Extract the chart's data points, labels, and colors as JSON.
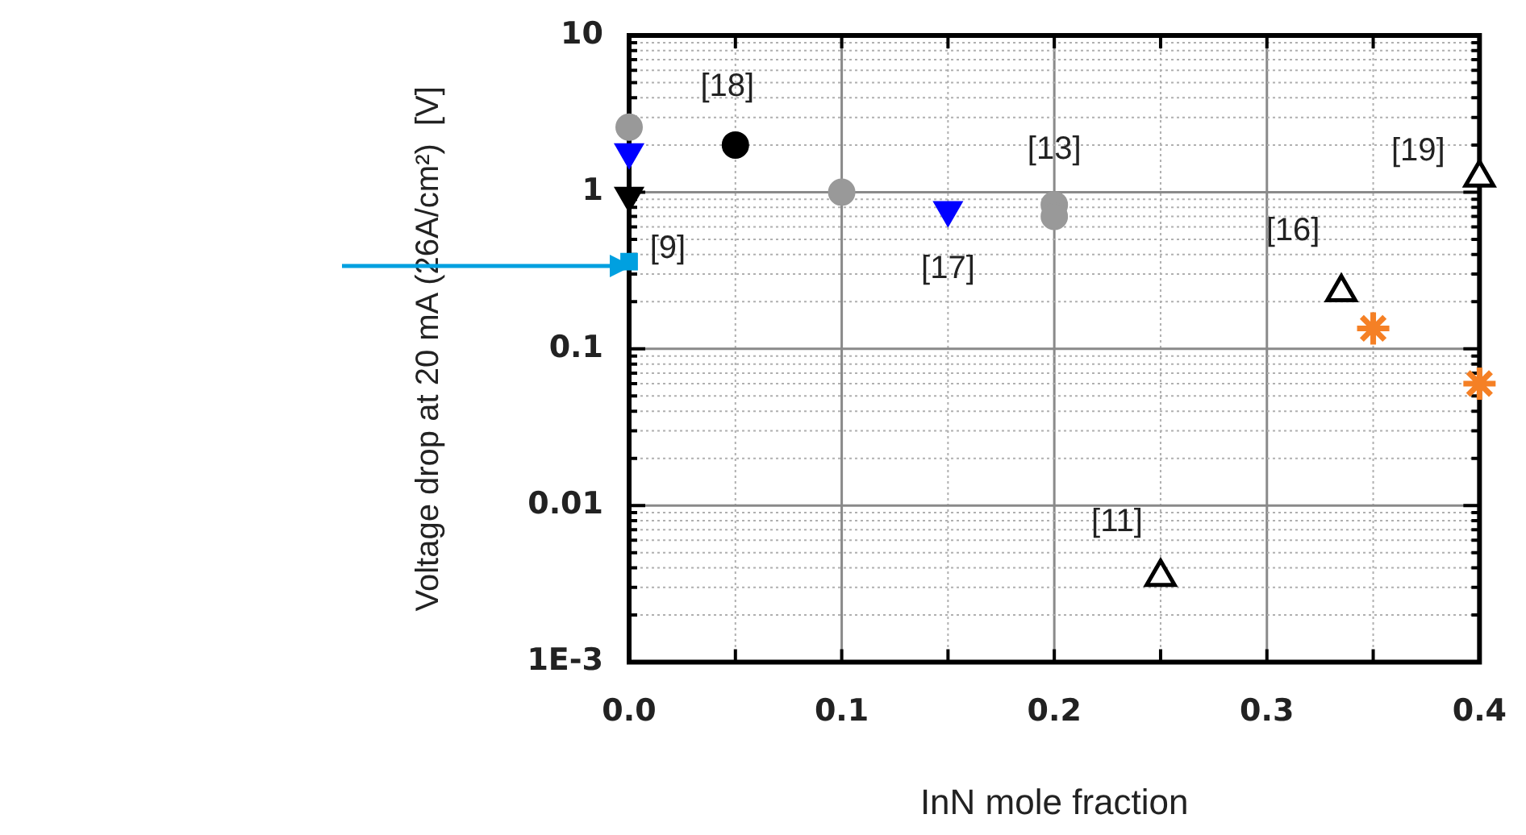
{
  "chart_data": {
    "type": "scatter",
    "xlabel": "InN mole fraction",
    "ylabel": "Voltage drop at 20 mA (26A/cm²)  [V]",
    "xlim": [
      0,
      0.4
    ],
    "xticks": [
      {
        "value": 0,
        "label": "0.0"
      },
      {
        "value": 0.05,
        "label": null
      },
      0.1,
      {
        "value": 0.15,
        "label": null
      },
      0.2,
      {
        "value": 0.25,
        "label": null
      },
      0.3,
      {
        "value": 0.35,
        "label": null
      },
      0.4
    ],
    "ylim": [
      0.001,
      10
    ],
    "log": "y",
    "yticks": [
      {
        "value": 0.001,
        "label": "1E-3"
      },
      {
        "value": 0.002,
        "label": null
      },
      {
        "value": 0.003,
        "label": null
      },
      {
        "value": 0.004,
        "label": null
      },
      {
        "value": 0.005,
        "label": null
      },
      {
        "value": 0.006,
        "label": null
      },
      {
        "value": 0.007,
        "label": null
      },
      {
        "value": 0.008,
        "label": null
      },
      {
        "value": 0.009,
        "label": null
      },
      {
        "value": 0.01,
        "label": "0.01"
      },
      {
        "value": 0.02,
        "label": null
      },
      {
        "value": 0.03,
        "label": null
      },
      {
        "value": 0.04,
        "label": null
      },
      {
        "value": 0.05,
        "label": null
      },
      {
        "value": 0.06,
        "label": null
      },
      {
        "value": 0.07,
        "label": null
      },
      {
        "value": 0.08,
        "label": null
      },
      {
        "value": 0.09,
        "label": null
      },
      {
        "value": 0.1,
        "label": "0.1"
      },
      {
        "value": 0.2,
        "label": null
      },
      {
        "value": 0.3,
        "label": null
      },
      {
        "value": 0.4,
        "label": null
      },
      {
        "value": 0.5,
        "label": null
      },
      {
        "value": 0.6,
        "label": null
      },
      {
        "value": 0.7,
        "label": null
      },
      {
        "value": 0.8,
        "label": null
      },
      {
        "value": 0.9,
        "label": null
      },
      1,
      {
        "value": 2,
        "label": null
      },
      {
        "value": 3,
        "label": null
      },
      {
        "value": 4,
        "label": null
      },
      {
        "value": 5,
        "label": null
      },
      {
        "value": 6,
        "label": null
      },
      {
        "value": 7,
        "label": null
      },
      {
        "value": 8,
        "label": null
      },
      {
        "value": 9,
        "label": null
      },
      10
    ],
    "grid": true,
    "legend": false,
    "series": [
      {
        "color": "#999999",
        "marker": "circle",
        "x": [
          0,
          0.1,
          0.2,
          0.2
        ],
        "values": [
          2.6,
          1.0,
          0.83,
          0.7
        ]
      },
      {
        "color": "#000000",
        "marker": "circle",
        "x": [
          0.05
        ],
        "values": [
          2.0
        ]
      },
      {
        "color": "#0000ff",
        "marker": "triangle-down",
        "x": [
          0,
          0.15
        ],
        "values": [
          1.8,
          0.77
        ]
      },
      {
        "color": "#000000",
        "marker": "triangle-down",
        "x": [
          0
        ],
        "values": [
          0.95
        ]
      },
      {
        "color": "#00a0e0",
        "marker": "square",
        "x": [
          0
        ],
        "values": [
          0.36
        ]
      },
      {
        "color": "#000000",
        "marker": "triangle-open",
        "x": [
          0.25,
          0.335,
          0.4
        ],
        "values": [
          0.0035,
          0.23,
          1.24
        ]
      },
      {
        "color": "#f58025",
        "x": [
          0.35,
          0.4
        ],
        "values": [
          0.135,
          0.06
        ]
      }
    ],
    "annotations": [
      {
        "text": "[18]",
        "x": 0.05,
        "y": 2.0
      },
      {
        "text": "[13]",
        "x": 0.2,
        "y": 0.83
      },
      {
        "text": "[17]",
        "x": 0.15,
        "y": 0.77
      },
      {
        "text": "[9]",
        "x": 0,
        "y": 0.36
      },
      {
        "text": "[11]",
        "x": 0.25,
        "y": 0.0035
      },
      {
        "text": "[16]",
        "x": 0.335,
        "y": 0.23
      },
      {
        "text": "[19]",
        "x": 0.4,
        "y": 1.24
      }
    ]
  }
}
